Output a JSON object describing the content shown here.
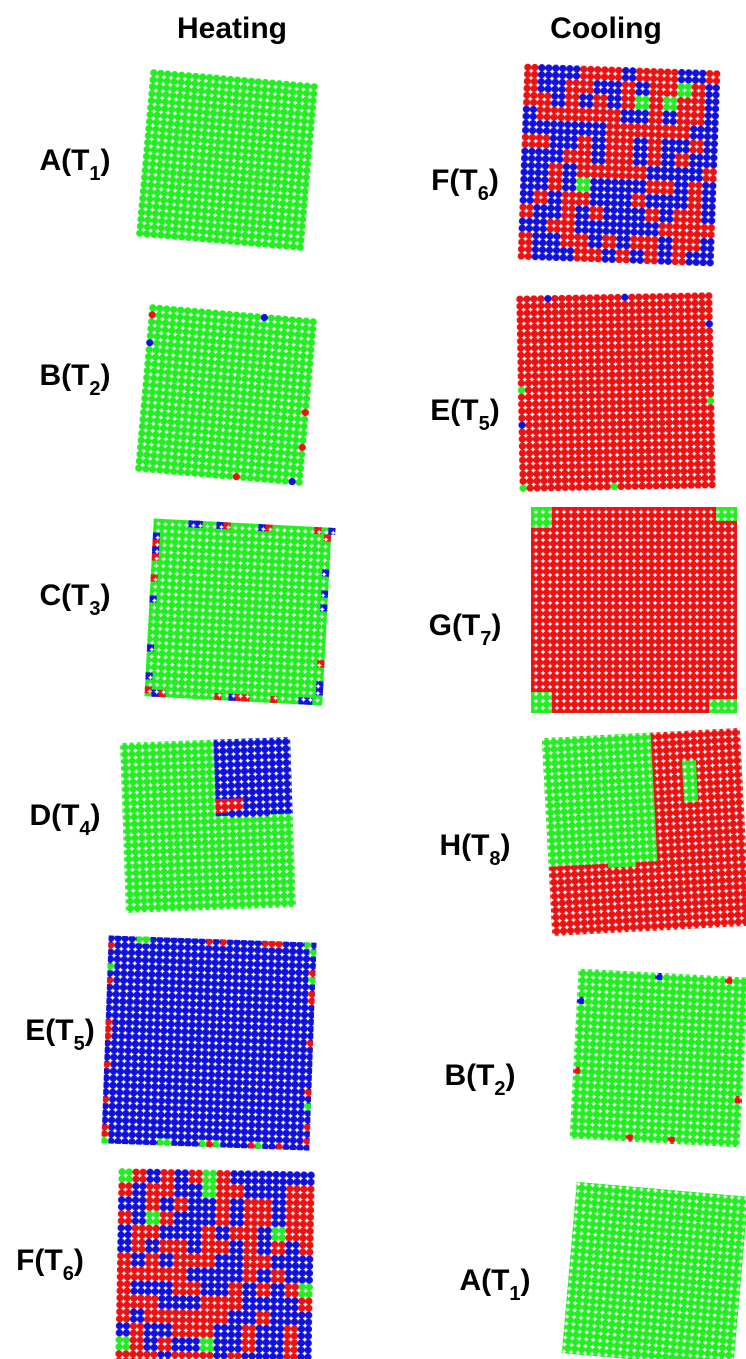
{
  "headings": {
    "left": "Heating",
    "right": "Cooling"
  },
  "heating": [
    {
      "pre": "A(T",
      "sub": "1",
      "post": ")"
    },
    {
      "pre": "B(T",
      "sub": "2",
      "post": ")"
    },
    {
      "pre": "C(T",
      "sub": "3",
      "post": ")"
    },
    {
      "pre": "D(T",
      "sub": "4",
      "post": ")"
    },
    {
      "pre": "E(T",
      "sub": "5",
      "post": ")"
    },
    {
      "pre": "F(T",
      "sub": "6",
      "post": ")"
    }
  ],
  "cooling": [
    {
      "pre": "F(T",
      "sub": "6",
      "post": ")"
    },
    {
      "pre": "E(T",
      "sub": "5",
      "post": ")"
    },
    {
      "pre": "G(T",
      "sub": "7",
      "post": ")"
    },
    {
      "pre": "H(T",
      "sub": "8",
      "post": ")"
    },
    {
      "pre": "B(T",
      "sub": "2",
      "post": ")"
    },
    {
      "pre": "A(T",
      "sub": "1",
      "post": ")"
    }
  ]
}
